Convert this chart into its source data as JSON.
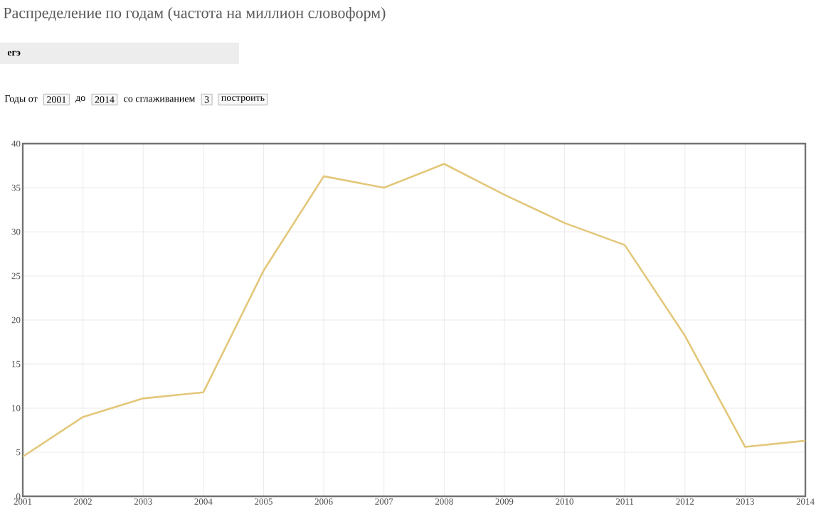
{
  "chart_data": {
    "type": "line",
    "title": "Распределение по годам (частота на миллион словоформ)",
    "subtitle": "егэ",
    "annotations": [
      "Годы от",
      "2001",
      "до",
      "2014",
      "со сглаживанием",
      "3",
      "построить"
    ],
    "x": [
      2001,
      2002,
      2003,
      2004,
      2005,
      2006,
      2007,
      2008,
      2009,
      2010,
      2011,
      2012,
      2013,
      2014
    ],
    "series": [
      {
        "color": "#e3c77a",
        "values": [
          4.5,
          9.0,
          11.1,
          11.8,
          25.6,
          36.3,
          35.0,
          37.7,
          34.2,
          31.0,
          28.5,
          18.2,
          5.6,
          6.3
        ]
      }
    ],
    "xlim": [
      2001,
      2014
    ],
    "xticks": [
      2001,
      2002,
      2003,
      2004,
      2005,
      2006,
      2007,
      2008,
      2009,
      2010,
      2011,
      2012,
      2013,
      2014
    ],
    "ylim": [
      0,
      40
    ],
    "yticks": [
      0,
      5,
      10,
      15,
      20,
      25,
      30,
      35,
      40
    ],
    "grid": true,
    "marker": "none",
    "line_style": "solid"
  }
}
